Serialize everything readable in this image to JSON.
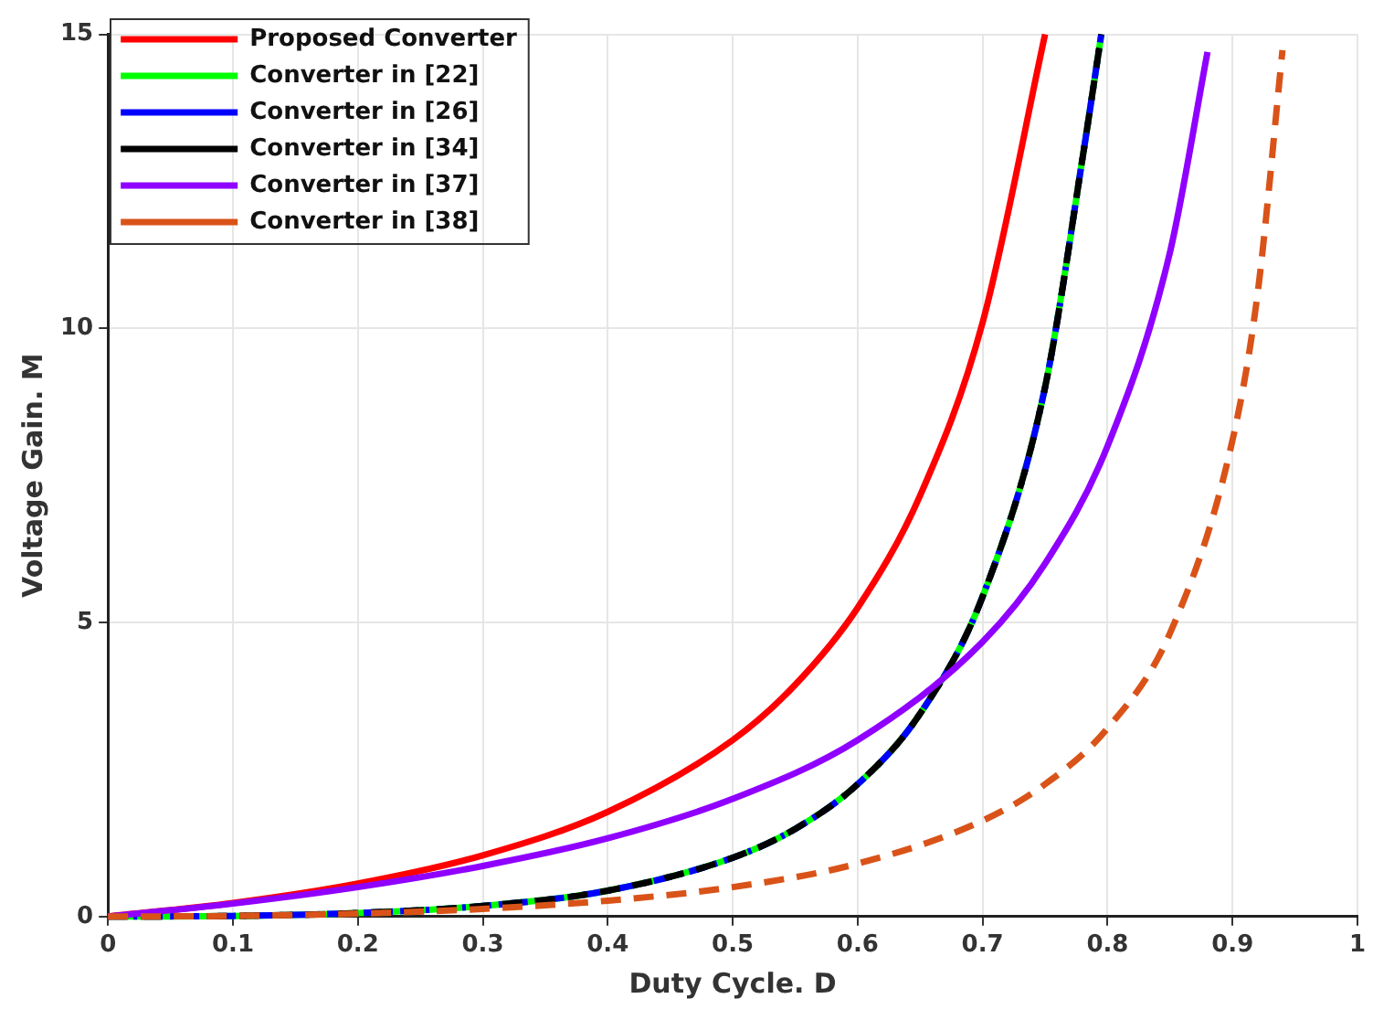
{
  "chart_data": {
    "type": "line",
    "xlabel": "Duty Cycle. D",
    "ylabel": "Voltage Gain. M",
    "xlim": [
      0,
      1
    ],
    "xticks": [
      0,
      0.1,
      0.2,
      0.3,
      0.4,
      0.5,
      0.6,
      0.7,
      0.8,
      0.9,
      1
    ],
    "ylim": [
      0,
      15
    ],
    "yticks": [
      0,
      5,
      10,
      15
    ],
    "grid": true,
    "legend": "top left",
    "marker": "none",
    "series": [
      {
        "name": "Proposed Converter",
        "color": "#ff0000",
        "line_style": "solid",
        "x": [
          0,
          0.1,
          0.2,
          0.3,
          0.4,
          0.5,
          0.55,
          0.6,
          0.65,
          0.7,
          0.75
        ],
        "values": [
          0,
          0.23,
          0.56,
          1.04,
          1.78,
          3,
          3.94,
          5.25,
          7.16,
          10.1,
          15
        ]
      },
      {
        "name": "Converter in [22]",
        "color": "#00ff00",
        "line_style": "solid",
        "x": [
          0,
          0.1,
          0.2,
          0.3,
          0.4,
          0.5,
          0.55,
          0.6,
          0.65,
          0.7,
          0.75,
          0.78,
          0.795
        ],
        "values": [
          0,
          0.01,
          0.06,
          0.18,
          0.44,
          1,
          1.49,
          2.25,
          3.45,
          5.44,
          9,
          12.9,
          15
        ]
      },
      {
        "name": "Converter in [26]",
        "color": "#0000ff",
        "line_style": "dashdot",
        "x": [
          0,
          0.1,
          0.2,
          0.3,
          0.4,
          0.5,
          0.55,
          0.6,
          0.65,
          0.7,
          0.75,
          0.78,
          0.795
        ],
        "values": [
          0,
          0.01,
          0.06,
          0.18,
          0.44,
          1,
          1.49,
          2.25,
          3.45,
          5.44,
          9,
          12.9,
          15
        ]
      },
      {
        "name": "Converter in [34]",
        "color": "#000000",
        "line_style": "dashed",
        "x": [
          0,
          0.1,
          0.2,
          0.3,
          0.4,
          0.5,
          0.55,
          0.6,
          0.65,
          0.7,
          0.75,
          0.78,
          0.795
        ],
        "values": [
          0,
          0.01,
          0.06,
          0.18,
          0.44,
          1,
          1.49,
          2.25,
          3.45,
          5.44,
          9,
          12.9,
          15
        ]
      },
      {
        "name": "Converter in [37]",
        "color": "#8f00ff",
        "line_style": "solid",
        "x": [
          0,
          0.1,
          0.2,
          0.3,
          0.4,
          0.5,
          0.6,
          0.7,
          0.75,
          0.8,
          0.85,
          0.88
        ],
        "values": [
          0,
          0.22,
          0.5,
          0.86,
          1.33,
          2,
          3,
          4.67,
          6,
          8,
          11.3,
          14.7
        ]
      },
      {
        "name": "Converter in [38]",
        "color": "#d95319",
        "line_style": "dashed",
        "x": [
          0,
          0.1,
          0.2,
          0.3,
          0.4,
          0.5,
          0.6,
          0.7,
          0.75,
          0.8,
          0.85,
          0.9,
          0.92,
          0.94
        ],
        "values": [
          0,
          0.01,
          0.05,
          0.13,
          0.27,
          0.5,
          0.9,
          1.63,
          2.25,
          3.2,
          4.82,
          8.1,
          10.58,
          14.73
        ]
      }
    ]
  }
}
